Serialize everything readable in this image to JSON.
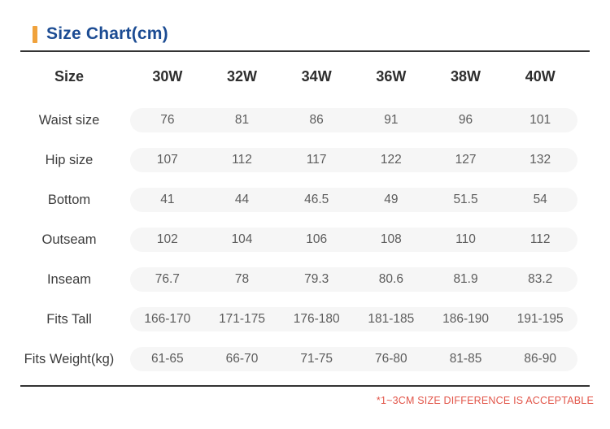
{
  "title": {
    "text": "Size Chart(cm)"
  },
  "colors": {
    "accent": "#f0a23c",
    "title": "#1c4c93",
    "rule": "#333333",
    "pill": "#f6f6f6",
    "footnote": "#e25549"
  },
  "table": {
    "header": {
      "label": "Size",
      "columns": [
        "30W",
        "32W",
        "34W",
        "36W",
        "38W",
        "40W"
      ]
    },
    "rows": [
      {
        "label": "Waist size",
        "values": [
          "76",
          "81",
          "86",
          "91",
          "96",
          "101"
        ]
      },
      {
        "label": "Hip size",
        "values": [
          "107",
          "112",
          "117",
          "122",
          "127",
          "132"
        ]
      },
      {
        "label": "Bottom",
        "values": [
          "41",
          "44",
          "46.5",
          "49",
          "51.5",
          "54"
        ]
      },
      {
        "label": "Outseam",
        "values": [
          "102",
          "104",
          "106",
          "108",
          "110",
          "112"
        ]
      },
      {
        "label": "Inseam",
        "values": [
          "76.7",
          "78",
          "79.3",
          "80.6",
          "81.9",
          "83.2"
        ]
      },
      {
        "label": "Fits Tall",
        "values": [
          "166-170",
          "171-175",
          "176-180",
          "181-185",
          "186-190",
          "191-195"
        ]
      },
      {
        "label": "Fits Weight(kg)",
        "values": [
          "61-65",
          "66-70",
          "71-75",
          "76-80",
          "81-85",
          "86-90"
        ]
      }
    ]
  },
  "footnote": {
    "text": "*1~3CM SIZE DIFFERENCE IS ACCEPTABLE"
  }
}
